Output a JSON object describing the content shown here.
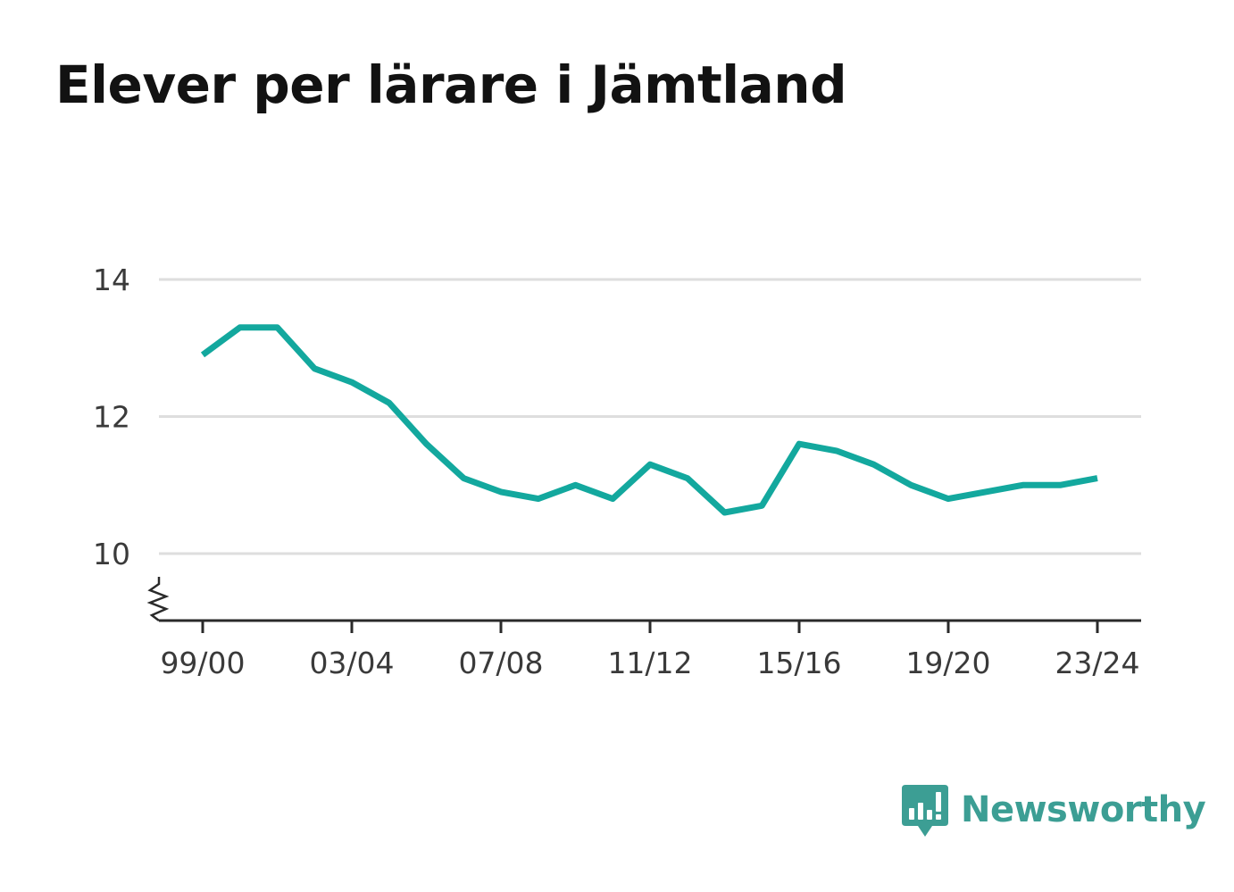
{
  "title": "Elever per lärare i Jämtland",
  "brand": {
    "name": "Newsworthy",
    "color": "#3c9e94"
  },
  "colors": {
    "line": "#13a89e",
    "grid": "#dedede",
    "axis": "#2a2a2a"
  },
  "chart_data": {
    "type": "line",
    "title": "Elever per lärare i Jämtland",
    "xlabel": "",
    "ylabel": "",
    "ylim": [
      9.1,
      14
    ],
    "y_axis_break": true,
    "grid": true,
    "yticks": [
      10,
      12,
      14
    ],
    "xtick_labels": [
      "99/00",
      "03/04",
      "07/08",
      "11/12",
      "15/16",
      "19/20",
      "23/24"
    ],
    "categories": [
      "99/00",
      "00/01",
      "01/02",
      "02/03",
      "03/04",
      "04/05",
      "05/06",
      "06/07",
      "07/08",
      "08/09",
      "09/10",
      "10/11",
      "11/12",
      "12/13",
      "13/14",
      "14/15",
      "15/16",
      "16/17",
      "17/18",
      "18/19",
      "19/20",
      "20/21",
      "21/22",
      "22/23",
      "23/24"
    ],
    "series": [
      {
        "values": [
          12.9,
          13.3,
          13.3,
          12.7,
          12.5,
          12.2,
          11.6,
          11.1,
          10.9,
          10.8,
          11.0,
          10.8,
          11.3,
          11.1,
          10.6,
          10.7,
          11.6,
          11.5,
          11.3,
          11.0,
          10.8,
          10.9,
          11.0,
          11.0,
          11.1
        ]
      }
    ]
  }
}
